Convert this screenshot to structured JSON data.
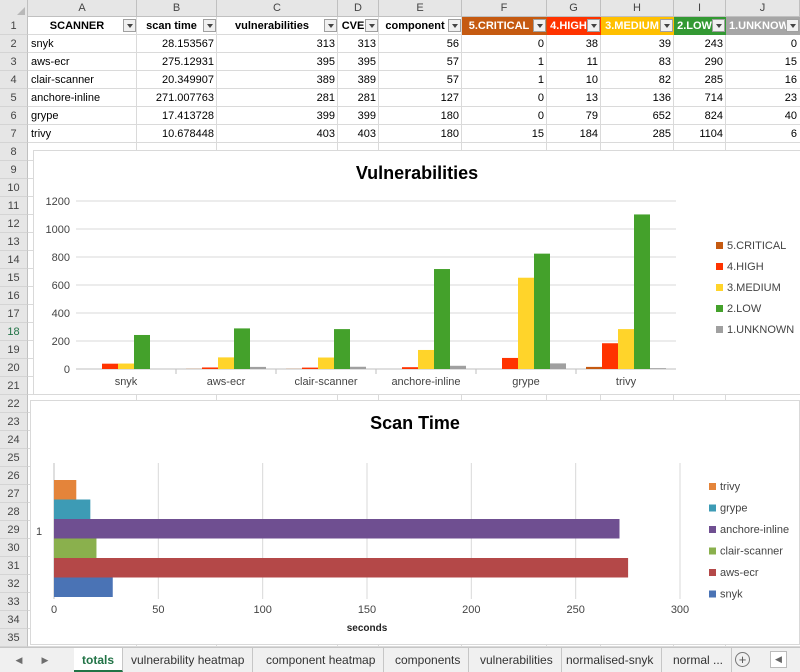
{
  "columns": [
    "A",
    "B",
    "C",
    "D",
    "E",
    "F",
    "G",
    "H",
    "I",
    "J"
  ],
  "rows": [
    "1",
    "2",
    "3",
    "4",
    "5",
    "6",
    "7",
    "8",
    "9",
    "10",
    "11",
    "12",
    "13",
    "14",
    "15",
    "16",
    "17",
    "18",
    "19",
    "20",
    "21",
    "22",
    "23",
    "24",
    "25",
    "26",
    "27",
    "28",
    "29",
    "30",
    "31",
    "32",
    "33",
    "34",
    "35",
    "36"
  ],
  "active_row": "18",
  "table": {
    "headers": [
      "SCANNER",
      "scan time",
      "vulnerabilities",
      "CVE",
      "component",
      "5.CRITICAL",
      "4.HIGH",
      "3.MEDIUM",
      "2.LOW",
      "1.UNKNOWN"
    ],
    "header_colors": [
      "",
      "",
      "",
      "",
      "",
      "#c55a11",
      "#ff3300",
      "#ffc000",
      "#339933",
      "#a6a6a6"
    ],
    "rows": [
      [
        "snyk",
        "28.153567",
        "313",
        "313",
        "56",
        "0",
        "38",
        "39",
        "243",
        "0"
      ],
      [
        "aws-ecr",
        "275.12931",
        "395",
        "395",
        "57",
        "1",
        "11",
        "83",
        "290",
        "15"
      ],
      [
        "clair-scanner",
        "20.349907",
        "389",
        "389",
        "57",
        "1",
        "10",
        "82",
        "285",
        "16"
      ],
      [
        "anchore-inline",
        "271.007763",
        "281",
        "281",
        "127",
        "0",
        "13",
        "136",
        "714",
        "23"
      ],
      [
        "grype",
        "17.413728",
        "399",
        "399",
        "180",
        "0",
        "79",
        "652",
        "824",
        "40"
      ],
      [
        "trivy",
        "10.678448",
        "403",
        "403",
        "180",
        "15",
        "184",
        "285",
        "1104",
        "6"
      ]
    ]
  },
  "chart_data": [
    {
      "type": "bar",
      "title": "Vulnerabilities",
      "categories": [
        "snyk",
        "aws-ecr",
        "clair-scanner",
        "anchore-inline",
        "grype",
        "trivy"
      ],
      "series": [
        {
          "name": "5.CRITICAL",
          "color": "#c55a11",
          "values": [
            0,
            1,
            1,
            0,
            0,
            15
          ]
        },
        {
          "name": "4.HIGH",
          "color": "#ff3300",
          "values": [
            38,
            11,
            10,
            13,
            79,
            184
          ]
        },
        {
          "name": "3.MEDIUM",
          "color": "#ffd42a",
          "values": [
            39,
            83,
            82,
            136,
            652,
            285
          ]
        },
        {
          "name": "2.LOW",
          "color": "#44a12b",
          "values": [
            243,
            290,
            285,
            714,
            824,
            1104
          ]
        },
        {
          "name": "1.UNKNOWN",
          "color": "#a0a0a0",
          "values": [
            0,
            15,
            16,
            23,
            40,
            6
          ]
        }
      ],
      "yticks": [
        "0",
        "200",
        "400",
        "600",
        "800",
        "1000",
        "1200"
      ],
      "ylim": [
        0,
        1200
      ],
      "legend": "right"
    },
    {
      "type": "bar",
      "orientation": "horizontal",
      "title": "Scan Time",
      "categories": [
        "1"
      ],
      "series": [
        {
          "name": "snyk",
          "color": "#4a73b5",
          "values": [
            28.153567
          ]
        },
        {
          "name": "aws-ecr",
          "color": "#b44848",
          "values": [
            275.12931
          ]
        },
        {
          "name": "clair-scanner",
          "color": "#8ab04d",
          "values": [
            20.349907
          ]
        },
        {
          "name": "anchore-inline",
          "color": "#6f4f91",
          "values": [
            271.007763
          ]
        },
        {
          "name": "grype",
          "color": "#3d9bb5",
          "values": [
            17.413728
          ]
        },
        {
          "name": "trivy",
          "color": "#e4843a",
          "values": [
            10.678448
          ]
        }
      ],
      "xticks": [
        "0",
        "50",
        "100",
        "150",
        "200",
        "250",
        "300"
      ],
      "xlim": [
        0,
        300
      ],
      "xlabel": "seconds",
      "legend": "right"
    }
  ],
  "tabs": [
    {
      "label": "totals",
      "active": true
    },
    {
      "label": "vulnerability heatmap",
      "active": false
    },
    {
      "label": "component heatmap",
      "active": false
    },
    {
      "label": "components",
      "active": false
    },
    {
      "label": "vulnerabilities",
      "active": false
    },
    {
      "label": "normalised-snyk",
      "active": false
    },
    {
      "label": "normal ...",
      "active": false
    }
  ],
  "icons": {
    "nav_prev": "triangle-left-icon",
    "nav_next": "triangle-right-icon",
    "add_sheet": "plus-circle-icon",
    "scroll_left": "scroll-left-icon",
    "filter": "dropdown-filter-icon"
  }
}
